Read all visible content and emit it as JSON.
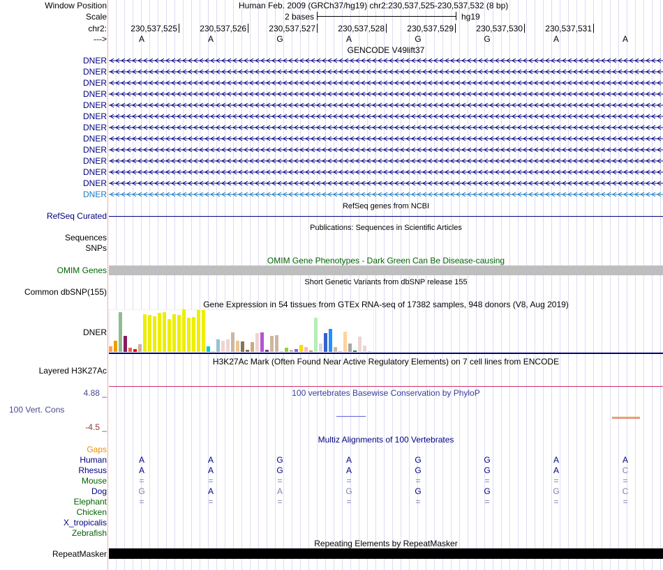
{
  "header": {
    "window_position_label": "Window Position",
    "window_position": "Human Feb. 2009 (GRCh37/hg19)   chr2:230,537,525-230,537,532 (8 bp)",
    "scale_label": "Scale",
    "scale_value": "2 bases",
    "scale_assembly": "hg19",
    "chrom_label": "chr2:",
    "strand_label": "--->",
    "positions": [
      "230,537,525",
      "230,537,526",
      "230,537,527",
      "230,537,528",
      "230,537,529",
      "230,537,530",
      "230,537,531"
    ],
    "bases": [
      "A",
      "A",
      "G",
      "A",
      "G",
      "G",
      "A",
      "A"
    ]
  },
  "gencode": {
    "title": "GENCODE V49lift37",
    "genes": [
      "DNER",
      "DNER",
      "DNER",
      "DNER",
      "DNER",
      "DNER",
      "DNER",
      "DNER",
      "DNER",
      "DNER",
      "DNER",
      "DNER",
      "DNER"
    ]
  },
  "refseq": {
    "title": "RefSeq genes from NCBI",
    "label": "RefSeq Curated"
  },
  "pubs": {
    "title": "Publications: Sequences in Scientific Articles",
    "label1": "Sequences",
    "label2": "SNPs"
  },
  "omim": {
    "title": "OMIM Gene Phenotypes - Dark Green Can Be Disease-causing",
    "label": "OMIM Genes"
  },
  "dbsnp": {
    "title": "Short Genetic Variants from dbSNP release 155",
    "label": "Common dbSNP(155)"
  },
  "gtex": {
    "title": "Gene Expression in 54 tissues from GTEx RNA-seq of 17382 samples, 948 donors (V8, Aug 2019)",
    "label": "DNER"
  },
  "chart_data": {
    "type": "bar",
    "title": "Gene Expression in 54 tissues from GTEx RNA-seq of 17382 samples, 948 donors (V8, Aug 2019)",
    "note": "relative expression heights (max=100)",
    "values": [
      13,
      26,
      93,
      38,
      10,
      7,
      18,
      89,
      87,
      84,
      92,
      93,
      77,
      89,
      87,
      100,
      80,
      82,
      98,
      98,
      13,
      1,
      30,
      26,
      30,
      46,
      26,
      25,
      5,
      23,
      45,
      46,
      5,
      37,
      39,
      1,
      10,
      5,
      7,
      16,
      11,
      3,
      80,
      20,
      45,
      54,
      11,
      2,
      48,
      20,
      3,
      36,
      15,
      1
    ],
    "colors": [
      "#ffa054",
      "#eea000",
      "#8fbc8f",
      "#881c5c",
      "#f06048",
      "#ff0000",
      "#ccb29a",
      "#eeee00",
      "#eeee00",
      "#eeee00",
      "#eeee00",
      "#eeee00",
      "#eeee00",
      "#eeee00",
      "#eeee00",
      "#eeee00",
      "#eeee00",
      "#eeee00",
      "#eeee00",
      "#eeee00",
      "#00cdcd",
      "#cccccc",
      "#9ac0cd",
      "#eed5d2",
      "#eed5d2",
      "#cdb79e",
      "#eec591",
      "#8b7355",
      "#8b7355",
      "#cdaa7d",
      "#eed5d2",
      "#b454d0",
      "#7a378b",
      "#cdb79e",
      "#cdb79e",
      "#cccccc",
      "#9acd32",
      "#cdb79e",
      "#7a67ee",
      "#ffd700",
      "#ffb6c1",
      "#cd9b1d",
      "#b4eeb4",
      "#d9d9d9",
      "#3a5fcd",
      "#1e90ff",
      "#cdb79e",
      "#cdb79e",
      "#ffd39b",
      "#a6a6a6",
      "#008b45",
      "#eed5d2",
      "#eed5d2",
      "#cccccc"
    ]
  },
  "h3k27ac": {
    "title": "H3K27Ac Mark (Often Found Near Active Regulatory Elements) on 7 cell lines from ENCODE",
    "label": "Layered H3K27Ac"
  },
  "phylop": {
    "title": "100 vertebrates Basewise Conservation by PhyloP",
    "label": "100 Vert. Cons",
    "max": "4.88 _",
    "min": "-4.5 _"
  },
  "multiz": {
    "title": "Multiz Alignments of 100 Vertebrates",
    "gaps_label": "Gaps",
    "species": [
      {
        "name": "Human",
        "color": "#000080",
        "bases": [
          "A",
          "A",
          "G",
          "A",
          "G",
          "G",
          "A",
          "A"
        ],
        "faint": [
          0,
          0,
          0,
          0,
          0,
          0,
          0,
          0
        ]
      },
      {
        "name": "Rhesus",
        "color": "#000080",
        "bases": [
          "A",
          "A",
          "G",
          "A",
          "G",
          "G",
          "A",
          "C"
        ],
        "faint": [
          0,
          0,
          0,
          0,
          0,
          0,
          0,
          1
        ]
      },
      {
        "name": "Mouse",
        "color": "#006400",
        "bases": [
          "=",
          "=",
          "=",
          "=",
          "=",
          "=",
          "=",
          "="
        ],
        "faint": [
          1,
          1,
          1,
          1,
          1,
          1,
          1,
          1
        ]
      },
      {
        "name": "Dog",
        "color": "#000080",
        "bases": [
          "G",
          "A",
          "A",
          "G",
          "G",
          "G",
          "G",
          "C"
        ],
        "faint": [
          1,
          0,
          1,
          1,
          0,
          0,
          1,
          1
        ]
      },
      {
        "name": "Elephant",
        "color": "#006400",
        "bases": [
          "=",
          "=",
          "=",
          "=",
          "=",
          "=",
          "=",
          "="
        ],
        "faint": [
          1,
          1,
          1,
          1,
          1,
          1,
          1,
          1
        ]
      },
      {
        "name": "Chicken",
        "color": "#006400",
        "bases": [],
        "faint": []
      },
      {
        "name": "X_tropicalis",
        "color": "#000080",
        "bases": [],
        "faint": []
      },
      {
        "name": "Zebrafish",
        "color": "#006400",
        "bases": [],
        "faint": []
      }
    ]
  },
  "rmsk": {
    "title": "Repeating Elements by RepeatMasker",
    "label": "RepeatMasker"
  }
}
